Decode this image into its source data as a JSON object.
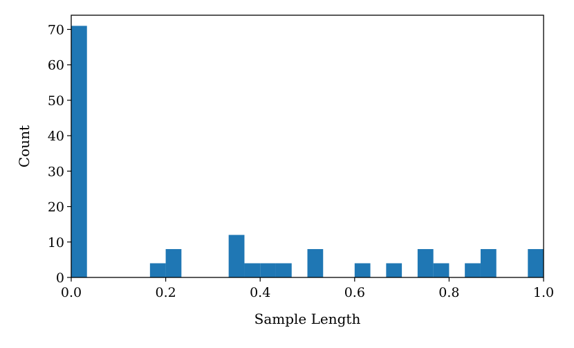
{
  "chart_data": {
    "type": "bar",
    "title": "",
    "xlabel": "Sample Length",
    "ylabel": "Count",
    "xlim": [
      0.0,
      1.0
    ],
    "ylim": [
      0,
      74
    ],
    "x_ticks": [
      "0.0",
      "0.2",
      "0.4",
      "0.6",
      "0.8",
      "1.0"
    ],
    "y_ticks": [
      "0",
      "10",
      "20",
      "30",
      "40",
      "50",
      "60",
      "70"
    ],
    "grid": false,
    "bar_color": "#1f77b4",
    "bin_width": 0.0333,
    "bins": [
      {
        "x0": 0.0,
        "x1": 0.0333,
        "count": 71
      },
      {
        "x0": 0.0333,
        "x1": 0.0667,
        "count": 0
      },
      {
        "x0": 0.0667,
        "x1": 0.1,
        "count": 0
      },
      {
        "x0": 0.1,
        "x1": 0.1333,
        "count": 0
      },
      {
        "x0": 0.1333,
        "x1": 0.1667,
        "count": 0
      },
      {
        "x0": 0.1667,
        "x1": 0.2,
        "count": 4
      },
      {
        "x0": 0.2,
        "x1": 0.2333,
        "count": 8
      },
      {
        "x0": 0.2333,
        "x1": 0.2667,
        "count": 0
      },
      {
        "x0": 0.2667,
        "x1": 0.3,
        "count": 0
      },
      {
        "x0": 0.3,
        "x1": 0.3333,
        "count": 0
      },
      {
        "x0": 0.3333,
        "x1": 0.3667,
        "count": 12
      },
      {
        "x0": 0.3667,
        "x1": 0.4,
        "count": 4
      },
      {
        "x0": 0.4,
        "x1": 0.4333,
        "count": 4
      },
      {
        "x0": 0.4333,
        "x1": 0.4667,
        "count": 4
      },
      {
        "x0": 0.4667,
        "x1": 0.5,
        "count": 0
      },
      {
        "x0": 0.5,
        "x1": 0.5333,
        "count": 8
      },
      {
        "x0": 0.5333,
        "x1": 0.5667,
        "count": 0
      },
      {
        "x0": 0.5667,
        "x1": 0.6,
        "count": 0
      },
      {
        "x0": 0.6,
        "x1": 0.6333,
        "count": 4
      },
      {
        "x0": 0.6333,
        "x1": 0.6667,
        "count": 0
      },
      {
        "x0": 0.6667,
        "x1": 0.7,
        "count": 4
      },
      {
        "x0": 0.7,
        "x1": 0.7333,
        "count": 0
      },
      {
        "x0": 0.7333,
        "x1": 0.7667,
        "count": 8
      },
      {
        "x0": 0.7667,
        "x1": 0.8,
        "count": 4
      },
      {
        "x0": 0.8,
        "x1": 0.8333,
        "count": 0
      },
      {
        "x0": 0.8333,
        "x1": 0.8667,
        "count": 4
      },
      {
        "x0": 0.8667,
        "x1": 0.9,
        "count": 8
      },
      {
        "x0": 0.9,
        "x1": 0.9333,
        "count": 0
      },
      {
        "x0": 0.9333,
        "x1": 0.9667,
        "count": 0
      },
      {
        "x0": 0.9667,
        "x1": 1.0,
        "count": 8
      }
    ]
  }
}
